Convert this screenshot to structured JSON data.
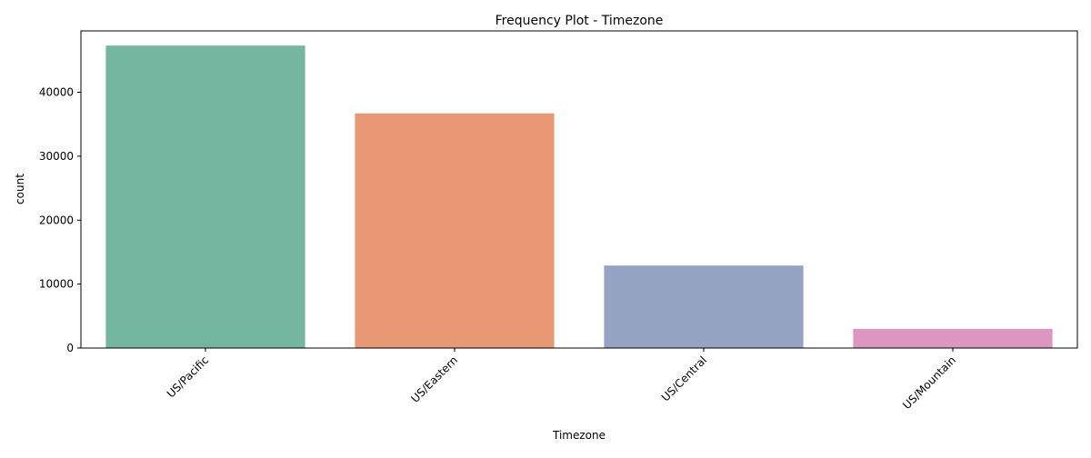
{
  "chart_data": {
    "type": "bar",
    "title": "Frequency Plot - Timezone",
    "xlabel": "Timezone",
    "ylabel": "count",
    "categories": [
      "US/Pacific",
      "US/Eastern",
      "US/Central",
      "US/Mountain"
    ],
    "values": [
      47300,
      36700,
      12900,
      3000
    ],
    "colors": [
      "#75b6a0",
      "#e99875",
      "#96a4c3",
      "#dc96c2"
    ],
    "ylim": [
      0,
      49600
    ],
    "yticks": [
      0,
      10000,
      20000,
      30000,
      40000
    ],
    "ytick_labels": [
      "0",
      "10000",
      "20000",
      "30000",
      "40000"
    ],
    "grid": false,
    "legend": "none"
  }
}
